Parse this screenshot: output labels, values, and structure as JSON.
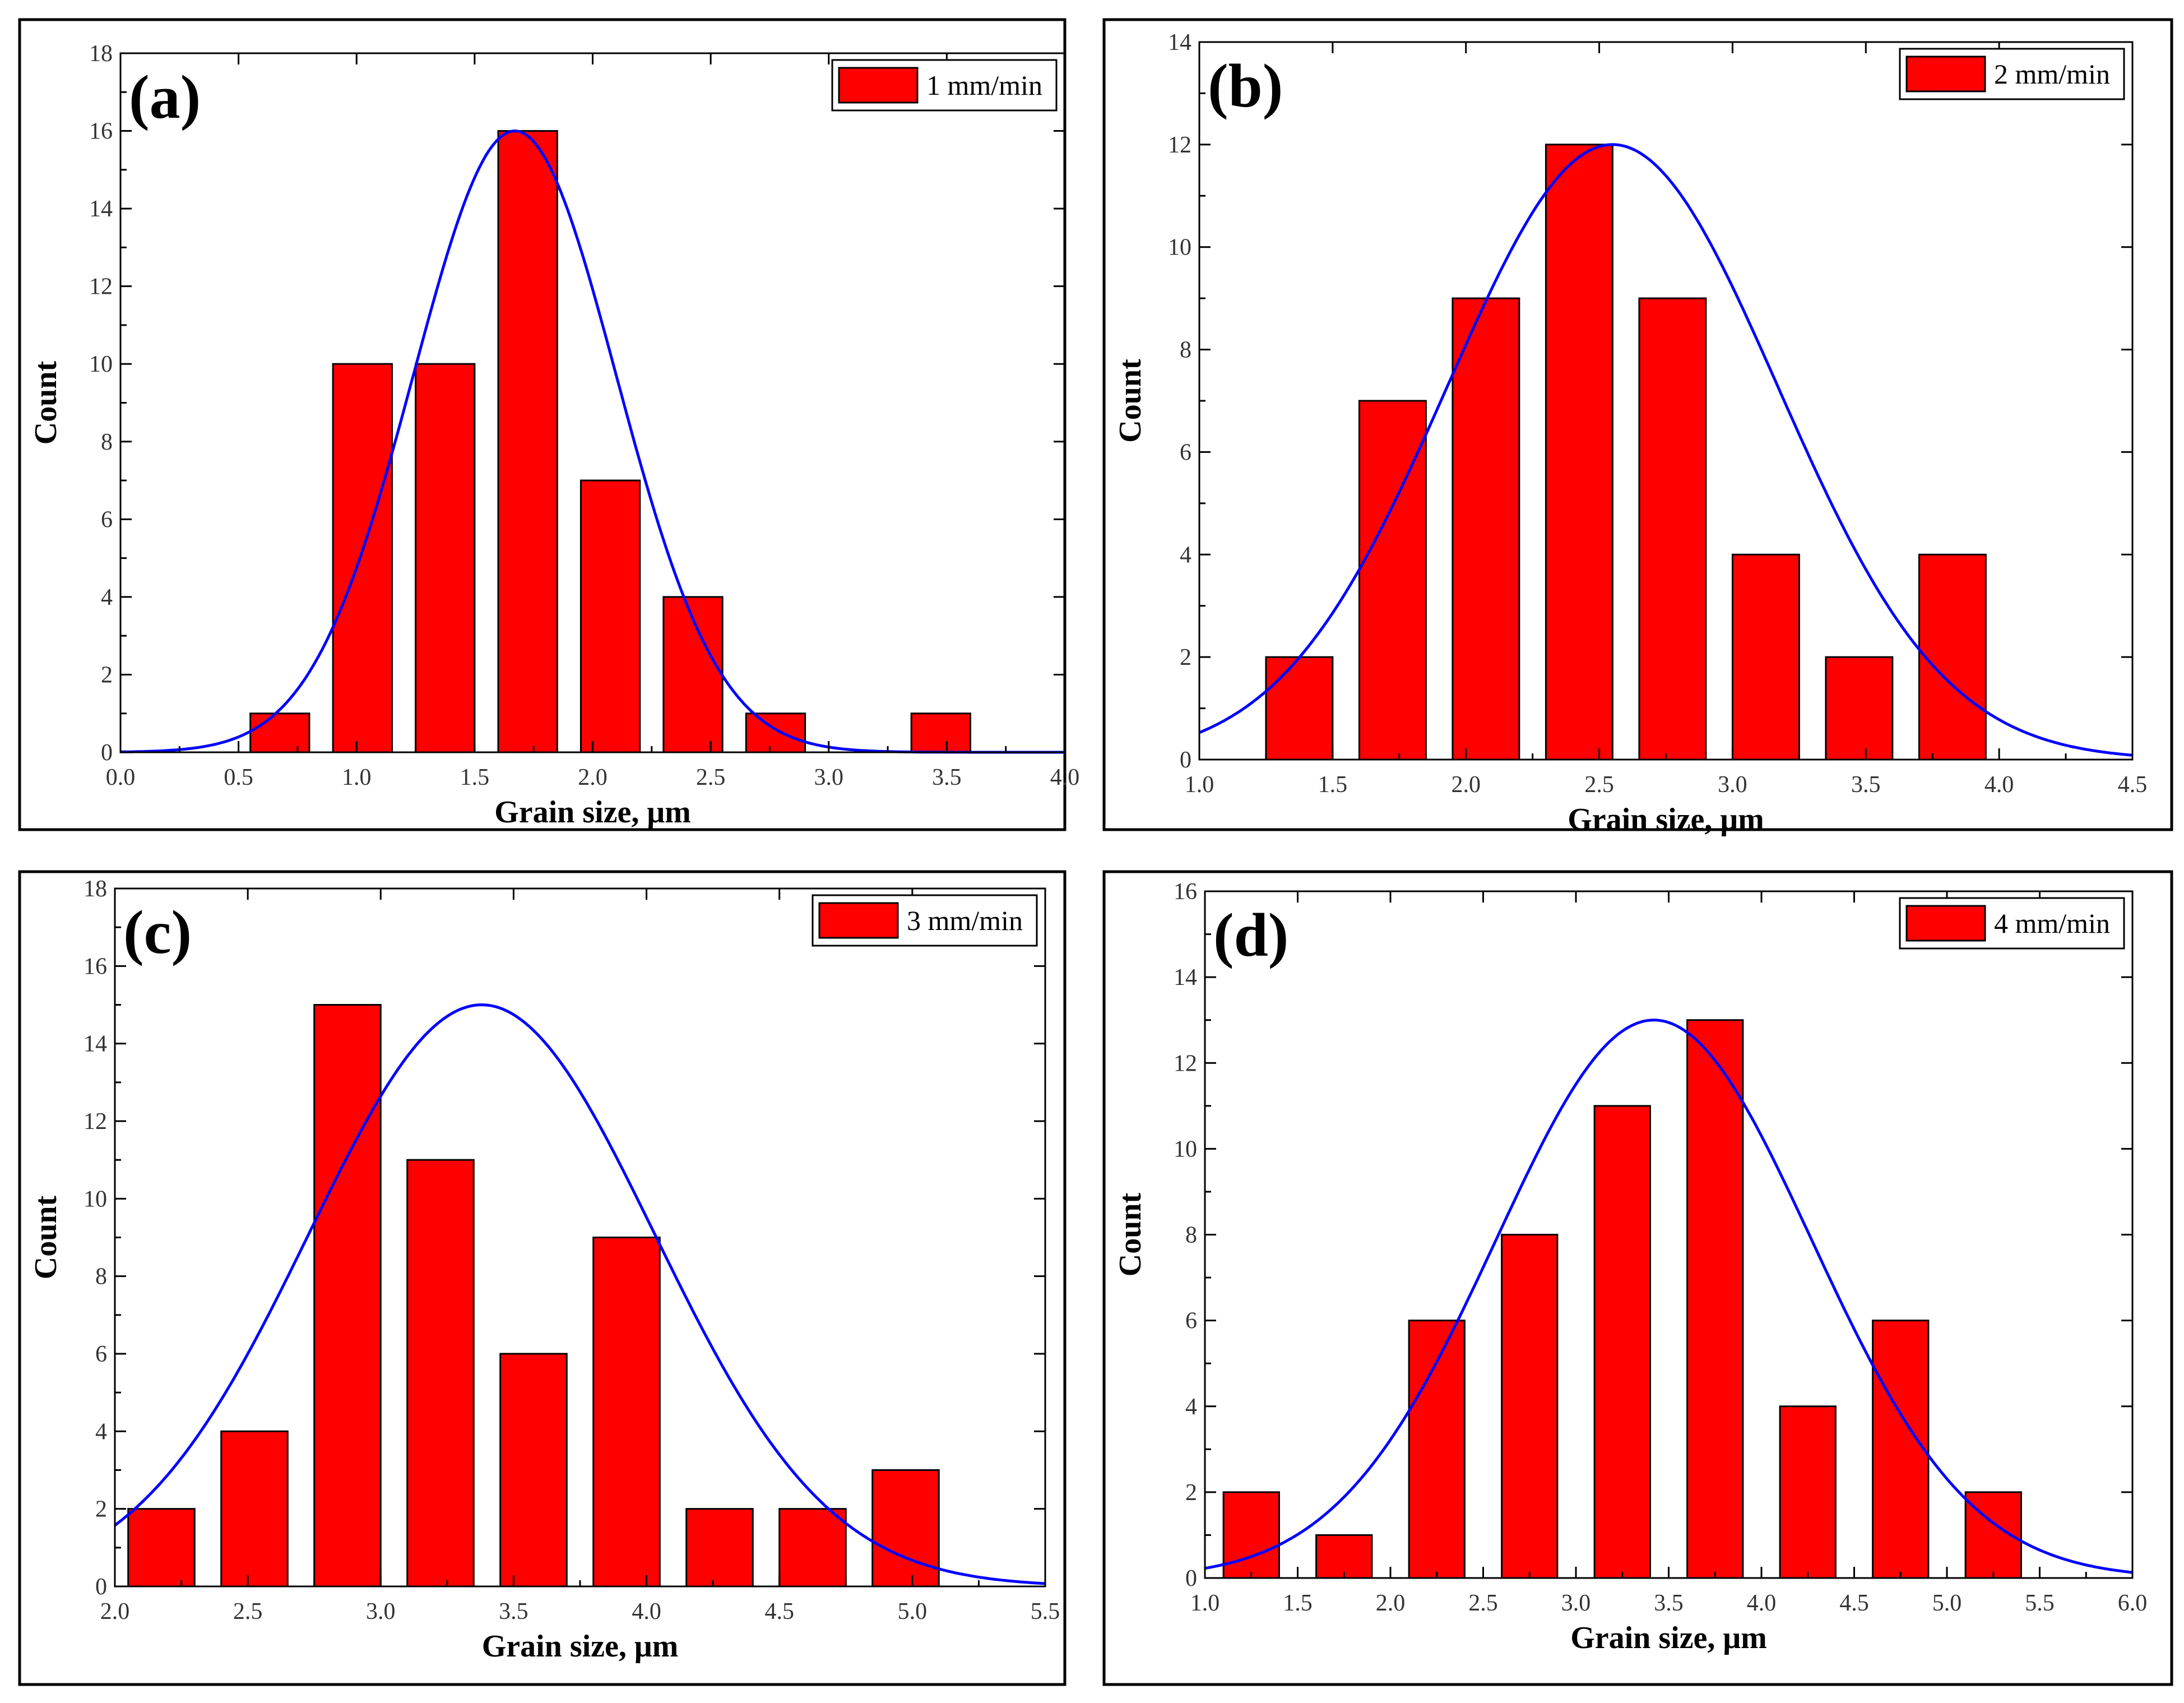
{
  "chart_data": [
    {
      "type": "bar",
      "panel_label": "(a)",
      "legend": "1 mm/min",
      "xlabel": "Grain size, μm",
      "ylabel": "Count",
      "xlim": [
        0.0,
        4.0
      ],
      "ylim": [
        0,
        18
      ],
      "xticks": [
        "0.0",
        "0.5",
        "1.0",
        "1.5",
        "2.0",
        "2.5",
        "3.0",
        "3.5",
        "4.0"
      ],
      "yticks": [
        "0",
        "2",
        "4",
        "6",
        "8",
        "10",
        "12",
        "14",
        "16",
        "18"
      ],
      "bin_starts": [
        0.55,
        0.9,
        1.25,
        1.6,
        1.95,
        2.3,
        2.65,
        3.35
      ],
      "bin_width": 0.25,
      "values": [
        1,
        10,
        10,
        16,
        7,
        4,
        1,
        1
      ],
      "fit": {
        "type": "gaussian",
        "mean": 1.67,
        "sigma": 0.43,
        "peak": 16
      },
      "colors": {
        "bar": "#ff0000",
        "fit": "#0000ff"
      }
    },
    {
      "type": "bar",
      "panel_label": "(b)",
      "legend": "2 mm/min",
      "xlabel": "Grain size, μm",
      "ylabel": "Count",
      "xlim": [
        1.0,
        4.5
      ],
      "ylim": [
        0,
        14
      ],
      "xticks": [
        "1.0",
        "1.5",
        "2.0",
        "2.5",
        "3.0",
        "3.5",
        "4.0",
        "4.5"
      ],
      "yticks": [
        "0",
        "2",
        "4",
        "6",
        "8",
        "10",
        "12",
        "14"
      ],
      "bin_starts": [
        1.25,
        1.6,
        1.95,
        2.3,
        2.65,
        3.0,
        3.35,
        3.7
      ],
      "bin_width": 0.25,
      "values": [
        2,
        7,
        9,
        12,
        9,
        4,
        2,
        4
      ],
      "fit": {
        "type": "gaussian",
        "mean": 2.55,
        "sigma": 0.62,
        "peak": 12
      },
      "colors": {
        "bar": "#ff0000",
        "fit": "#0000ff"
      }
    },
    {
      "type": "bar",
      "panel_label": "(c)",
      "legend": "3 mm/min",
      "xlabel": "Grain size, μm",
      "ylabel": "Count",
      "xlim": [
        2.0,
        5.5
      ],
      "ylim": [
        0,
        18
      ],
      "xticks": [
        "2.0",
        "2.5",
        "3.0",
        "3.5",
        "4.0",
        "4.5",
        "5.0",
        "5.5"
      ],
      "yticks": [
        "0",
        "2",
        "4",
        "6",
        "8",
        "10",
        "12",
        "14",
        "16",
        "18"
      ],
      "bin_starts": [
        2.05,
        2.4,
        2.75,
        3.1,
        3.45,
        3.8,
        4.15,
        4.5,
        4.85
      ],
      "bin_width": 0.25,
      "values": [
        2,
        4,
        15,
        11,
        6,
        9,
        2,
        2,
        3
      ],
      "fit": {
        "type": "gaussian",
        "mean": 3.38,
        "sigma": 0.65,
        "peak": 15
      },
      "colors": {
        "bar": "#ff0000",
        "fit": "#0000ff"
      }
    },
    {
      "type": "bar",
      "panel_label": "(d)",
      "legend": "4 mm/min",
      "xlabel": "Grain size, μm",
      "ylabel": "Count",
      "xlim": [
        1.0,
        6.0
      ],
      "ylim": [
        0,
        16
      ],
      "xticks": [
        "1.0",
        "1.5",
        "2.0",
        "2.5",
        "3.0",
        "3.5",
        "4.0",
        "4.5",
        "5.0",
        "5.5",
        "6.0"
      ],
      "yticks": [
        "0",
        "2",
        "4",
        "6",
        "8",
        "10",
        "12",
        "14",
        "16"
      ],
      "bin_starts": [
        1.1,
        1.6,
        2.1,
        2.6,
        3.1,
        3.6,
        4.1,
        4.6,
        5.1
      ],
      "bin_width": 0.3,
      "values": [
        2,
        1,
        6,
        8,
        11,
        13,
        4,
        6,
        2
      ],
      "fit": {
        "type": "gaussian",
        "mean": 3.42,
        "sigma": 0.85,
        "peak": 13
      },
      "colors": {
        "bar": "#ff0000",
        "fit": "#0000ff"
      }
    }
  ]
}
